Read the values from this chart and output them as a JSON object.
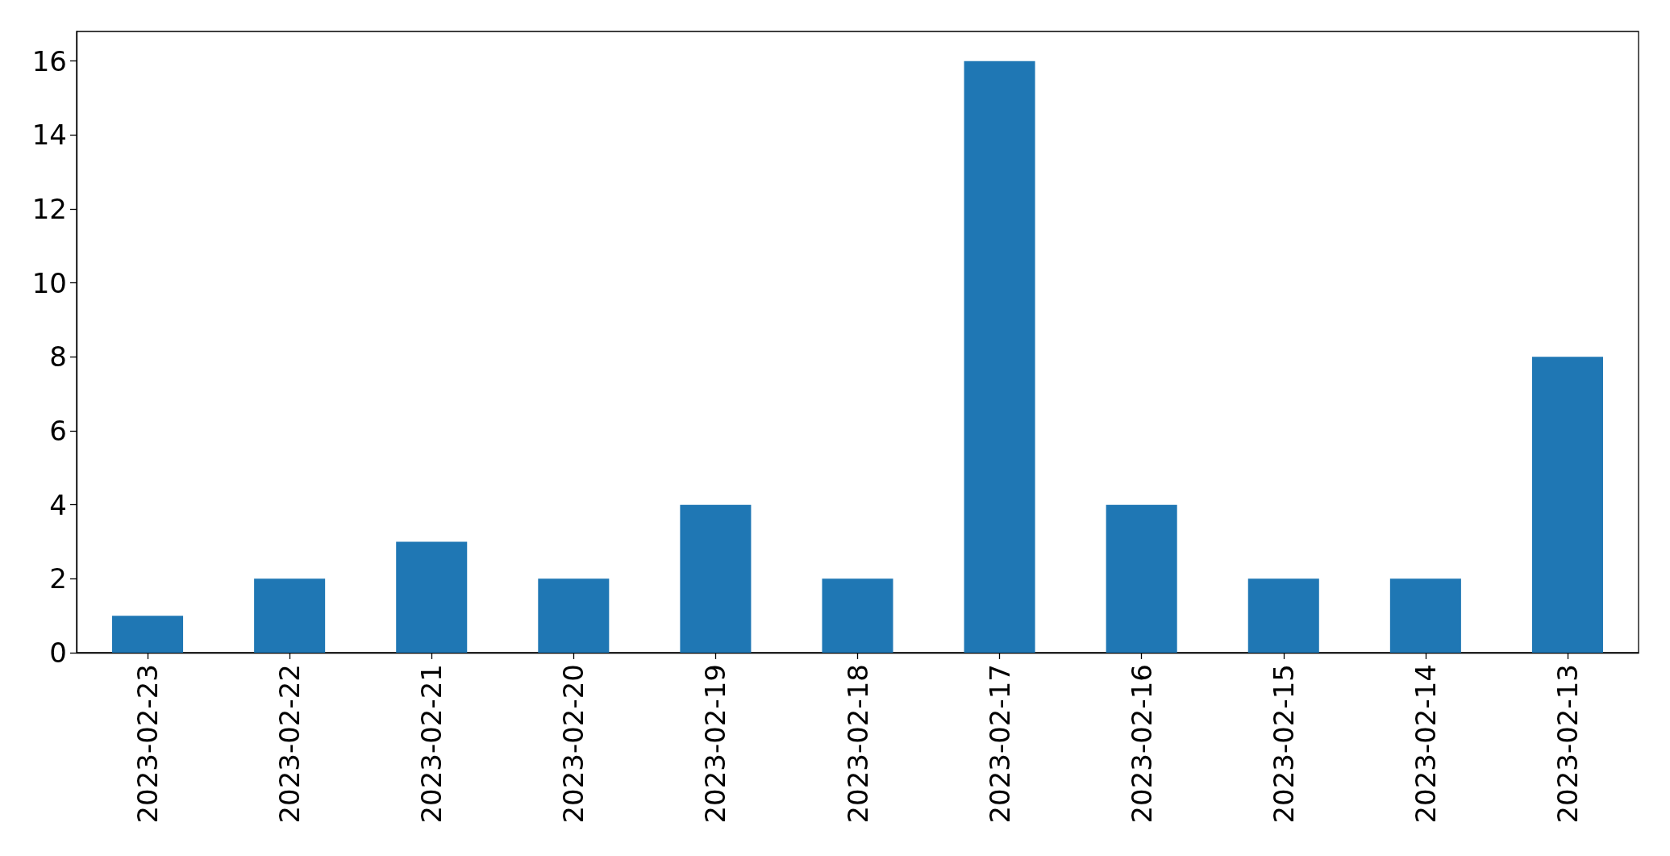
{
  "chart_data": {
    "type": "bar",
    "categories": [
      "2023-02-23",
      "2023-02-22",
      "2023-02-21",
      "2023-02-20",
      "2023-02-19",
      "2023-02-18",
      "2023-02-17",
      "2023-02-16",
      "2023-02-15",
      "2023-02-14",
      "2023-02-13"
    ],
    "values": [
      1,
      2,
      3,
      2,
      4,
      2,
      16,
      4,
      2,
      2,
      8
    ],
    "color": "#1f77b4",
    "ylim": [
      0,
      16.8
    ],
    "yticks": [
      0,
      2,
      4,
      6,
      8,
      10,
      12,
      14,
      16
    ]
  }
}
